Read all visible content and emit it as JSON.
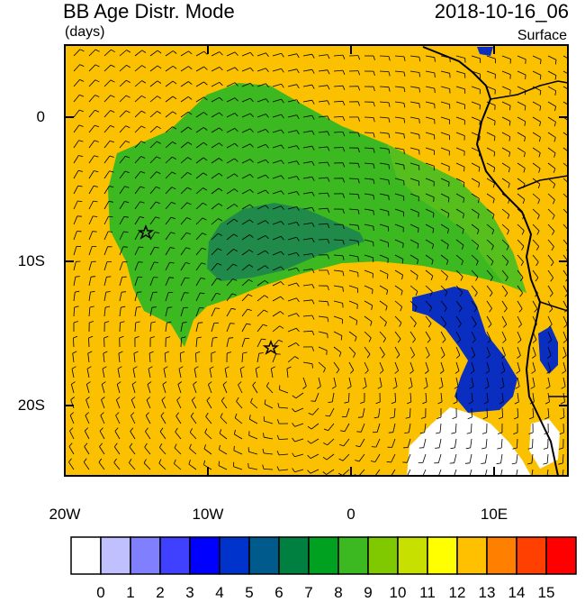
{
  "header": {
    "title": "BB Age Distr. Mode",
    "units": "(days)",
    "datetime": "2018-10-16_06",
    "level": "Surface"
  },
  "map": {
    "y_axis_labels": [
      "0",
      "10S",
      "20S"
    ],
    "x_axis_labels": [
      "20W",
      "10W",
      "0",
      "10E"
    ],
    "ocean_fill_color": "#fbc000",
    "land_fill_color": "#fbc000",
    "markers": [
      "star-icon",
      "star-icon"
    ]
  },
  "colorbar": {
    "labels": [
      "0",
      "1",
      "2",
      "3",
      "4",
      "5",
      "6",
      "7",
      "8",
      "9",
      "10",
      "11",
      "12",
      "13",
      "14",
      "15"
    ],
    "colors": [
      "#ffffff",
      "#c0c0ff",
      "#8080ff",
      "#4040ff",
      "#0000ff",
      "#0033cc",
      "#005a8c",
      "#008040",
      "#00a020",
      "#3cb820",
      "#80c800",
      "#c8e000",
      "#ffff00",
      "#ffc000",
      "#ff8000",
      "#ff4000",
      "#ff0000"
    ]
  }
}
